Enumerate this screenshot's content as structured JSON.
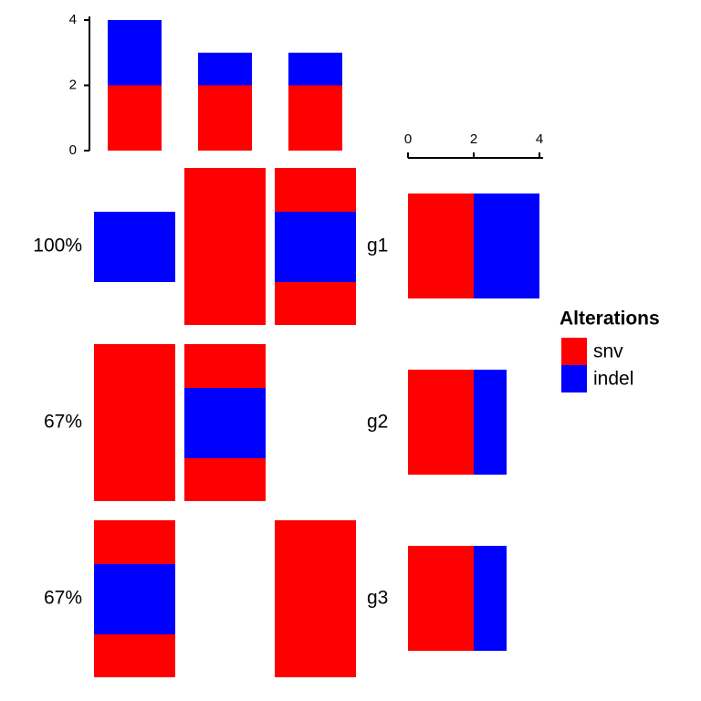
{
  "chart_data": {
    "type": "oncoprint",
    "genes": [
      "g1",
      "g2",
      "g3"
    ],
    "percent": [
      100,
      67,
      67
    ],
    "percent_labels": [
      "100%",
      "67%",
      "67%"
    ],
    "legend_title": "Alterations",
    "alterations": [
      {
        "name": "snv",
        "color": "#ff0000",
        "matrix": [
          [
            false,
            true,
            true
          ],
          [
            true,
            true,
            false
          ],
          [
            true,
            false,
            true
          ]
        ],
        "sample_counts": [
          2,
          2,
          2
        ],
        "gene_counts": [
          2,
          2,
          2
        ]
      },
      {
        "name": "indel",
        "color": "#0000ff",
        "matrix": [
          [
            true,
            false,
            true
          ],
          [
            false,
            true,
            false
          ],
          [
            true,
            false,
            false
          ]
        ],
        "sample_counts": [
          2,
          1,
          1
        ],
        "gene_counts": [
          2,
          1,
          1
        ]
      }
    ],
    "ylim": [
      0,
      4
    ],
    "yticks": [
      0,
      2,
      4
    ],
    "xlim": [
      0,
      4
    ],
    "xticks": [
      0,
      2,
      4
    ]
  }
}
